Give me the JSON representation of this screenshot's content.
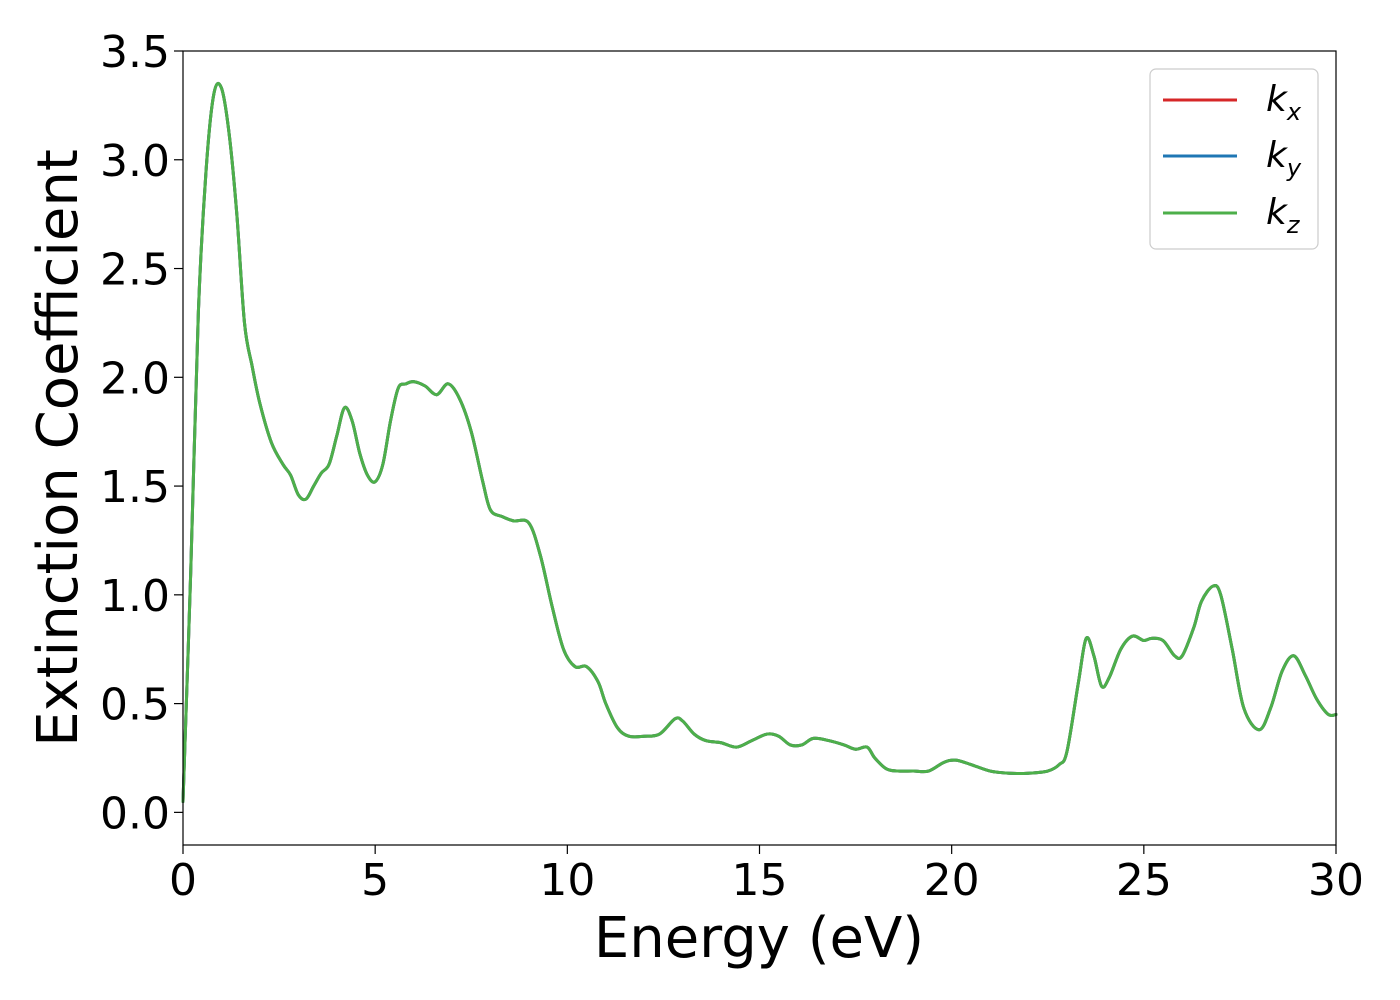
{
  "chart_data": {
    "type": "line",
    "xlabel": "Energy (eV)",
    "ylabel": "Extinction Coefficient",
    "xlim": [
      0,
      30
    ],
    "ylim": [
      -0.15,
      3.5
    ],
    "xticks": [
      0,
      5,
      10,
      15,
      20,
      25,
      30
    ],
    "xtick_labels": [
      "0",
      "5",
      "10",
      "15",
      "20",
      "25",
      "30"
    ],
    "yticks": [
      0.0,
      0.5,
      1.0,
      1.5,
      2.0,
      2.5,
      3.0,
      3.5
    ],
    "ytick_labels": [
      "0.0",
      "0.5",
      "1.0",
      "1.5",
      "2.0",
      "2.5",
      "3.0",
      "3.5"
    ],
    "grid": false,
    "legend_position": "top-right",
    "series": [
      {
        "name": "k",
        "subscript": "x",
        "color": "#d62728"
      },
      {
        "name": "k",
        "subscript": "y",
        "color": "#1f77b4"
      },
      {
        "name": "k",
        "subscript": "z",
        "color": "#4daf4a"
      }
    ],
    "x": [
      0,
      0.2,
      0.4,
      0.6,
      0.8,
      1.0,
      1.2,
      1.4,
      1.6,
      1.8,
      2.0,
      2.3,
      2.6,
      2.8,
      3.0,
      3.2,
      3.4,
      3.6,
      3.8,
      4.0,
      4.2,
      4.4,
      4.6,
      4.8,
      5.0,
      5.2,
      5.4,
      5.6,
      5.8,
      6.0,
      6.3,
      6.6,
      6.9,
      7.2,
      7.5,
      7.8,
      8.0,
      8.3,
      8.6,
      9.0,
      9.3,
      9.6,
      9.9,
      10.2,
      10.5,
      10.8,
      11.0,
      11.3,
      11.6,
      12.0,
      12.4,
      12.8,
      13.0,
      13.3,
      13.6,
      14.0,
      14.4,
      14.8,
      15.2,
      15.5,
      15.8,
      16.1,
      16.4,
      16.8,
      17.2,
      17.5,
      17.8,
      18.0,
      18.3,
      18.6,
      19.0,
      19.4,
      19.8,
      20.1,
      20.5,
      21.0,
      21.5,
      22.0,
      22.5,
      22.8,
      23.0,
      23.3,
      23.5,
      23.7,
      23.9,
      24.1,
      24.4,
      24.7,
      25.0,
      25.2,
      25.5,
      25.8,
      26.0,
      26.3,
      26.5,
      26.8,
      27.0,
      27.3,
      27.6,
      28.0,
      28.3,
      28.6,
      28.9,
      29.2,
      29.5,
      29.8,
      30.0
    ],
    "values": [
      0.05,
      1.1,
      2.3,
      2.95,
      3.3,
      3.33,
      3.12,
      2.75,
      2.25,
      2.05,
      1.88,
      1.7,
      1.6,
      1.55,
      1.46,
      1.44,
      1.5,
      1.56,
      1.6,
      1.73,
      1.86,
      1.8,
      1.65,
      1.55,
      1.52,
      1.6,
      1.8,
      1.95,
      1.97,
      1.98,
      1.96,
      1.92,
      1.97,
      1.9,
      1.75,
      1.52,
      1.39,
      1.36,
      1.34,
      1.33,
      1.18,
      0.95,
      0.75,
      0.67,
      0.67,
      0.6,
      0.5,
      0.39,
      0.35,
      0.35,
      0.36,
      0.43,
      0.42,
      0.36,
      0.33,
      0.32,
      0.3,
      0.33,
      0.36,
      0.35,
      0.31,
      0.31,
      0.34,
      0.33,
      0.31,
      0.29,
      0.3,
      0.25,
      0.2,
      0.19,
      0.19,
      0.19,
      0.23,
      0.24,
      0.22,
      0.19,
      0.18,
      0.18,
      0.19,
      0.22,
      0.28,
      0.6,
      0.8,
      0.72,
      0.58,
      0.62,
      0.75,
      0.81,
      0.79,
      0.8,
      0.79,
      0.72,
      0.72,
      0.85,
      0.97,
      1.04,
      1.0,
      0.75,
      0.48,
      0.38,
      0.48,
      0.65,
      0.72,
      0.63,
      0.52,
      0.45,
      0.45
    ]
  }
}
